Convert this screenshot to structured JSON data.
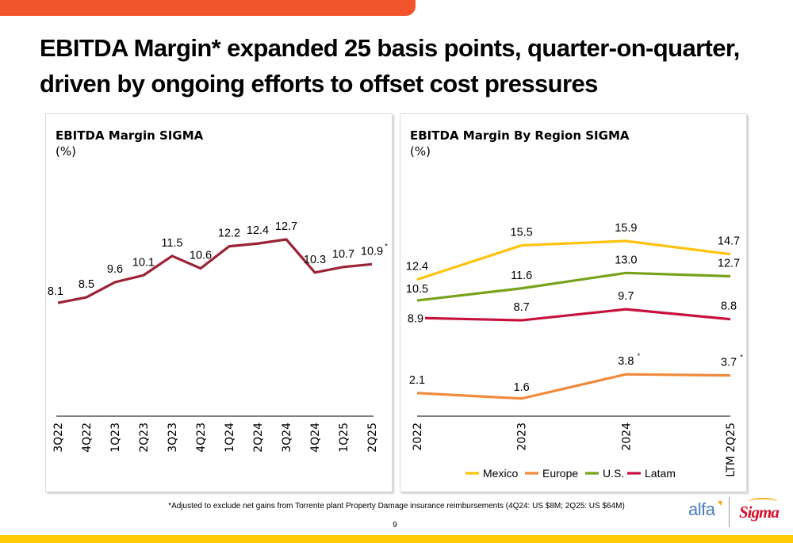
{
  "slide": {
    "title": "EBITDA Margin* expanded 25 basis points, quarter-on-quarter, driven by ongoing efforts to offset cost pressures",
    "footnote": "*Adjusted to exclude net gains from Torrente plant Property Damage insurance reimbursements (4Q24: US $8M; 2Q25: US $64M)",
    "page_number": "9",
    "logos": {
      "alfa": "alfa",
      "sigma": "Sigma"
    },
    "colors": {
      "top_bar": "#F2552C",
      "bottom_bar": "#FFCB05"
    }
  },
  "chart_data": [
    {
      "type": "line",
      "title": "EBITDA Margin SIGMA",
      "ylabel": "(%)",
      "xlabel": "",
      "categories": [
        "3Q22",
        "4Q22",
        "1Q23",
        "2Q23",
        "3Q23",
        "4Q23",
        "1Q24",
        "2Q24",
        "3Q24",
        "4Q24",
        "1Q25",
        "2Q25"
      ],
      "series": [
        {
          "name": "EBITDA Margin",
          "color": "#9B2335",
          "values": [
            8.1,
            8.5,
            9.6,
            10.1,
            11.5,
            10.6,
            12.2,
            12.4,
            12.7,
            10.3,
            10.7,
            10.9
          ],
          "labels": [
            "8.1",
            "8.5",
            "9.6",
            "10.1",
            "11.5",
            "10.6",
            "12.2",
            "12.4",
            "12.7",
            "10.3",
            "10.7",
            "10.9"
          ],
          "annotations": {
            "11": "*"
          }
        }
      ],
      "ylim": [
        0,
        14
      ],
      "grid": false,
      "legend": null
    },
    {
      "type": "line",
      "title": "EBITDA Margin By Region SIGMA",
      "ylabel": "(%)",
      "xlabel": "",
      "categories": [
        "2022",
        "2023",
        "2024",
        "LTM 2Q25"
      ],
      "series": [
        {
          "name": "Mexico",
          "color": "#FFC20E",
          "values": [
            12.4,
            15.5,
            15.9,
            14.7
          ],
          "labels": [
            "12.4",
            "15.5",
            "15.9",
            "14.7"
          ],
          "annotations": {}
        },
        {
          "name": "Europe",
          "color": "#F08A3C",
          "values": [
            2.1,
            1.6,
            3.8,
            3.7
          ],
          "labels": [
            "2.1",
            "1.6",
            "3.8",
            "3.7"
          ],
          "annotations": {
            "2": "*",
            "3": "*"
          }
        },
        {
          "name": "U.S.",
          "color": "#77A21A",
          "values": [
            10.5,
            11.6,
            13.0,
            12.7
          ],
          "labels": [
            "10.5",
            "11.6",
            "13.0",
            "12.7"
          ],
          "annotations": {}
        },
        {
          "name": "Latam",
          "color": "#C8103E",
          "values": [
            8.9,
            8.7,
            9.7,
            8.8
          ],
          "labels": [
            "8.9",
            "8.7",
            "9.7",
            "8.8"
          ],
          "annotations": {}
        }
      ],
      "ylim": [
        0,
        18
      ],
      "grid": false,
      "legend": "bottom"
    }
  ]
}
